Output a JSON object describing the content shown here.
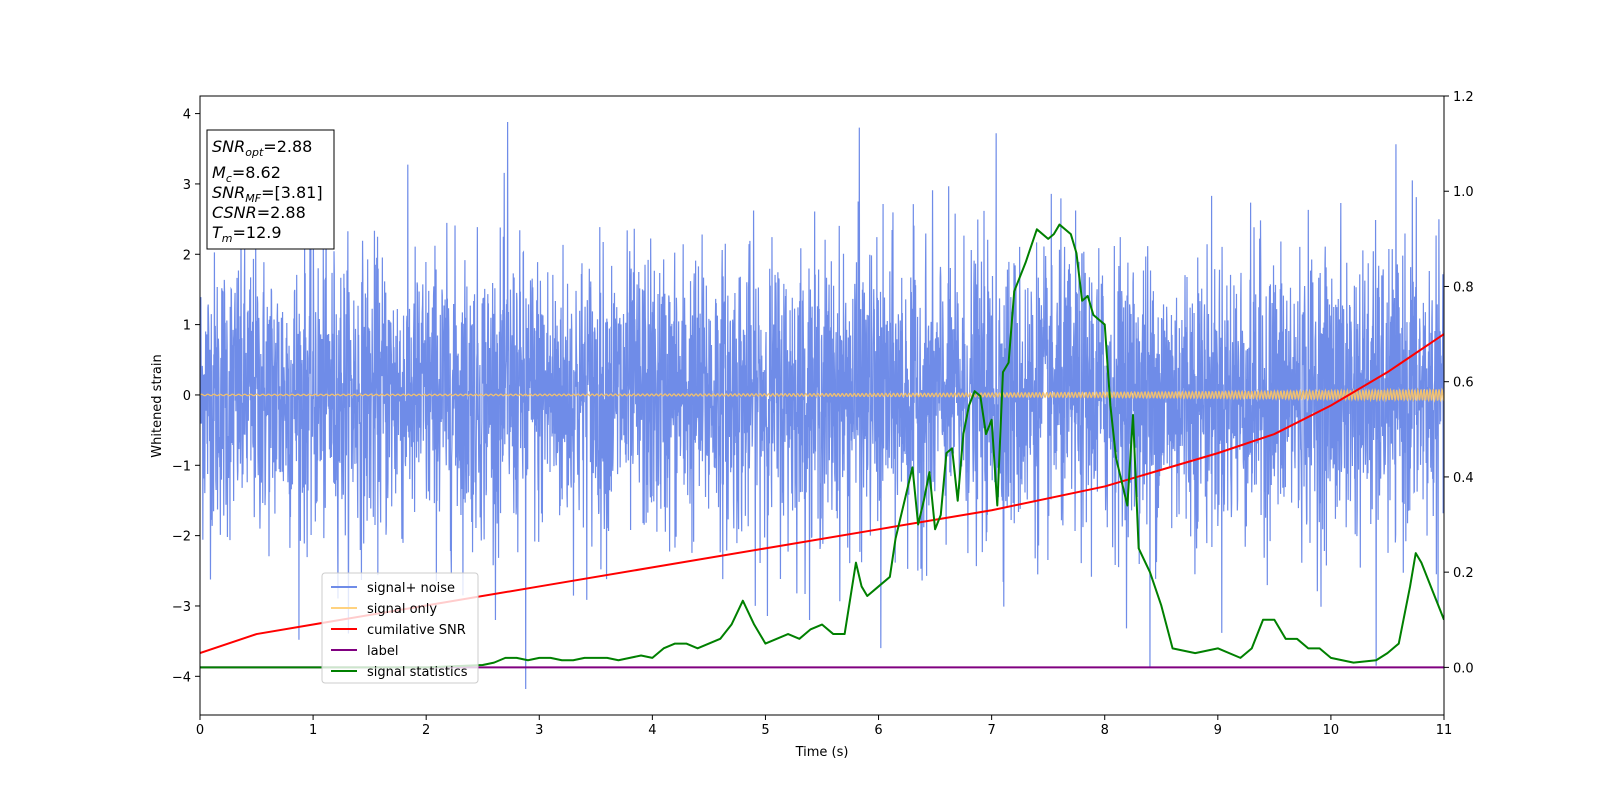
{
  "chart_data": {
    "type": "line",
    "xlabel": "Time (s)",
    "ylabel": "Whitened strain",
    "xlim": [
      0,
      11
    ],
    "ylim": [
      -4.55,
      4.25
    ],
    "y2lim": [
      -0.1,
      1.2
    ],
    "x_ticks": [
      0,
      1,
      2,
      3,
      4,
      5,
      6,
      7,
      8,
      9,
      10,
      11
    ],
    "y_ticks": [
      -4,
      -3,
      -2,
      -1,
      0,
      1,
      2,
      3,
      4
    ],
    "y2_ticks": [
      0.0,
      0.2,
      0.4,
      0.6,
      0.8,
      1.0,
      1.2
    ],
    "y2_tick_labels": [
      "0.0",
      "0.2",
      "0.4",
      "0.6",
      "0.8",
      "1.0",
      "1.2"
    ],
    "grid": false,
    "legend_position": "lower-left",
    "legend": [
      {
        "name": "signal+ noise",
        "color": "#6f8ce8"
      },
      {
        "name": "signal only",
        "color": "#ffd27f"
      },
      {
        "name": "cumilative SNR",
        "color": "#ff0000"
      },
      {
        "name": "label",
        "color": "#800080"
      },
      {
        "name": "signal statistics",
        "color": "#008000"
      }
    ],
    "info_box": {
      "snr_opt": {
        "base": "SNR",
        "sub": "opt",
        "value": "=2.88"
      },
      "mc": {
        "base": "M",
        "sub": "c",
        "value": "=8.62"
      },
      "snr_mf": {
        "base": "SNR",
        "sub": "MF",
        "value": "=[3.81]"
      },
      "csnr": {
        "base": "CSNR",
        "value": "=2.88"
      },
      "tm": {
        "base": "T",
        "sub": "m",
        "value": "=12.9"
      }
    },
    "series": [
      {
        "name": "signal+ noise",
        "axis": "left",
        "color": "#6f8ce8",
        "noise_std": 1.0,
        "noise_extremes": [
          [
            2.72,
            3.88
          ],
          [
            2.88,
            -4.18
          ],
          [
            5.83,
            3.8
          ],
          [
            7.04,
            3.72
          ],
          [
            6.02,
            -3.6
          ],
          [
            8.4,
            -3.87
          ],
          [
            10.4,
            -3.85
          ],
          [
            10.72,
            3.05
          ]
        ]
      },
      {
        "name": "signal only",
        "axis": "left",
        "color": "#f0c070",
        "amplitude_start": 0.01,
        "amplitude_end": 0.08
      },
      {
        "name": "cumilative SNR",
        "axis": "right",
        "color": "#ff0000",
        "x": [
          0,
          0.5,
          1,
          2,
          3,
          4,
          5,
          6,
          7,
          8,
          9,
          9.5,
          10,
          10.5,
          11
        ],
        "y": [
          0.03,
          0.07,
          0.09,
          0.13,
          0.17,
          0.21,
          0.25,
          0.29,
          0.33,
          0.38,
          0.45,
          0.49,
          0.55,
          0.62,
          0.7
        ]
      },
      {
        "name": "label",
        "axis": "right",
        "color": "#800080",
        "x": [
          0,
          11
        ],
        "y": [
          0.0,
          0.0
        ]
      },
      {
        "name": "signal statistics",
        "axis": "right",
        "color": "#008000",
        "x": [
          0,
          0.5,
          1,
          1.5,
          2,
          2.5,
          2.6,
          2.7,
          2.8,
          2.9,
          3.0,
          3.1,
          3.2,
          3.3,
          3.4,
          3.5,
          3.6,
          3.7,
          3.8,
          3.9,
          4.0,
          4.1,
          4.2,
          4.3,
          4.4,
          4.5,
          4.6,
          4.7,
          4.8,
          4.9,
          5.0,
          5.1,
          5.2,
          5.3,
          5.4,
          5.5,
          5.6,
          5.7,
          5.8,
          5.85,
          5.9,
          6.0,
          6.1,
          6.15,
          6.2,
          6.3,
          6.35,
          6.4,
          6.45,
          6.5,
          6.55,
          6.6,
          6.65,
          6.7,
          6.75,
          6.8,
          6.85,
          6.9,
          6.95,
          7.0,
          7.05,
          7.1,
          7.15,
          7.2,
          7.3,
          7.4,
          7.5,
          7.55,
          7.6,
          7.7,
          7.75,
          7.8,
          7.85,
          7.9,
          8.0,
          8.05,
          8.1,
          8.2,
          8.25,
          8.3,
          8.4,
          8.5,
          8.6,
          8.8,
          9.0,
          9.2,
          9.3,
          9.4,
          9.5,
          9.6,
          9.7,
          9.8,
          9.9,
          10.0,
          10.2,
          10.4,
          10.5,
          10.6,
          10.7,
          10.75,
          10.8,
          10.9,
          11.0
        ],
        "y": [
          0.0,
          0.0,
          0.0,
          0.0,
          0.0,
          0.005,
          0.01,
          0.02,
          0.02,
          0.015,
          0.02,
          0.02,
          0.015,
          0.015,
          0.02,
          0.02,
          0.02,
          0.015,
          0.02,
          0.025,
          0.02,
          0.04,
          0.05,
          0.05,
          0.04,
          0.05,
          0.06,
          0.09,
          0.14,
          0.09,
          0.05,
          0.06,
          0.07,
          0.06,
          0.08,
          0.09,
          0.07,
          0.07,
          0.22,
          0.17,
          0.15,
          0.17,
          0.19,
          0.27,
          0.32,
          0.42,
          0.3,
          0.35,
          0.41,
          0.29,
          0.32,
          0.45,
          0.46,
          0.35,
          0.49,
          0.55,
          0.58,
          0.57,
          0.49,
          0.52,
          0.34,
          0.62,
          0.64,
          0.79,
          0.85,
          0.92,
          0.9,
          0.91,
          0.93,
          0.91,
          0.87,
          0.77,
          0.78,
          0.74,
          0.72,
          0.55,
          0.44,
          0.34,
          0.53,
          0.25,
          0.2,
          0.13,
          0.04,
          0.03,
          0.04,
          0.02,
          0.04,
          0.1,
          0.1,
          0.06,
          0.06,
          0.04,
          0.04,
          0.02,
          0.01,
          0.015,
          0.03,
          0.05,
          0.17,
          0.24,
          0.22,
          0.16,
          0.1
        ]
      }
    ]
  }
}
